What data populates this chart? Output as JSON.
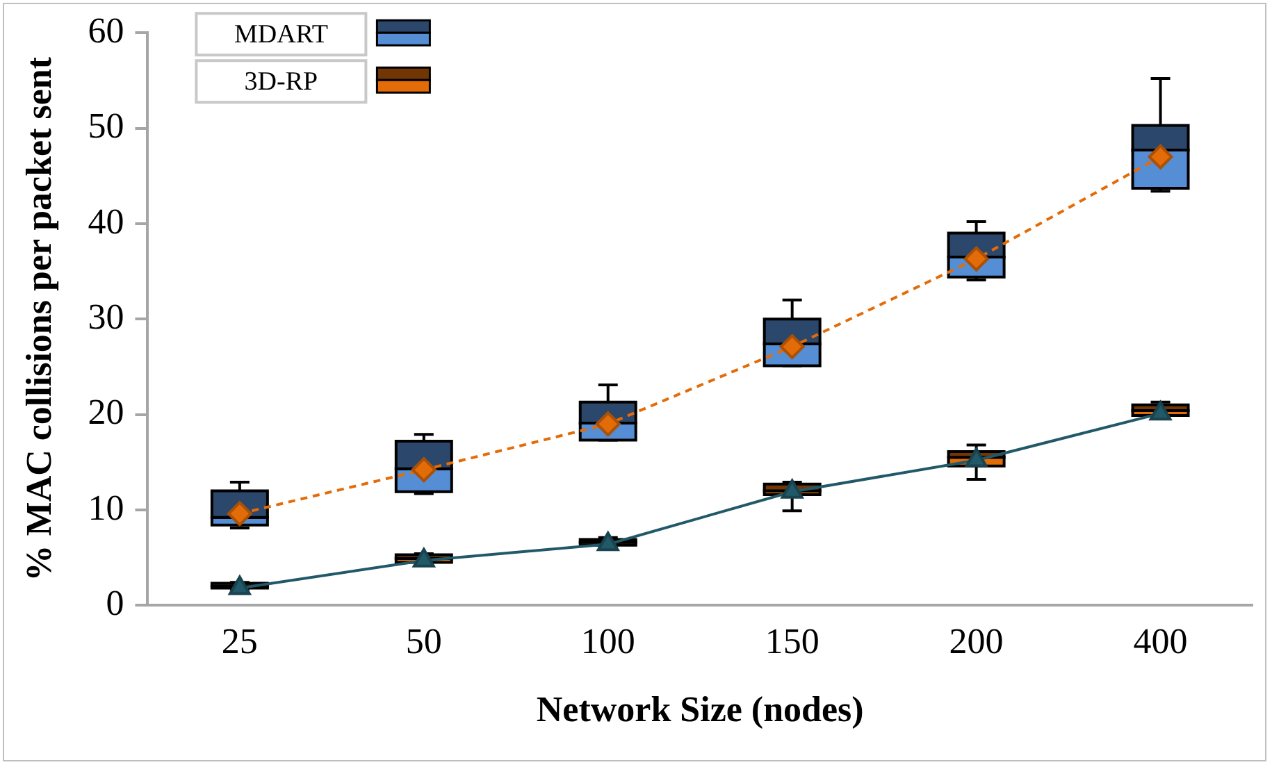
{
  "chart_data": {
    "type": "box",
    "xlabel": "Network Size (nodes)",
    "ylabel": "% MAC collisions per packet sent",
    "categories": [
      "25",
      "50",
      "100",
      "150",
      "200",
      "400"
    ],
    "ylim": [
      0,
      60
    ],
    "yticks": [
      0,
      10,
      20,
      30,
      40,
      50,
      60
    ],
    "grid": false,
    "legend": "top left",
    "series": [
      {
        "name": "MDART",
        "type": "box",
        "color": "#558ed5",
        "boxes": [
          {
            "low": 8.1,
            "q1": 8.4,
            "median": 9.2,
            "q3": 12.0,
            "high": 12.9
          },
          {
            "low": 11.7,
            "q1": 11.9,
            "median": 14.3,
            "q3": 17.2,
            "high": 17.9
          },
          {
            "low": 17.3,
            "q1": 17.3,
            "median": 19.1,
            "q3": 21.3,
            "high": 23.1
          },
          {
            "low": 25.1,
            "q1": 25.1,
            "median": 27.4,
            "q3": 30.0,
            "high": 32.0
          },
          {
            "low": 34.1,
            "q1": 34.4,
            "median": 36.5,
            "q3": 39.0,
            "high": 40.2
          },
          {
            "low": 43.4,
            "q1": 43.7,
            "median": 47.7,
            "q3": 50.3,
            "high": 55.2
          }
        ]
      },
      {
        "name": "3D-RP",
        "type": "box",
        "color": "#e36c09",
        "boxes": [
          {
            "low": 1.7,
            "q1": 1.8,
            "median": 2.0,
            "q3": 2.3,
            "high": 2.4
          },
          {
            "low": 4.4,
            "q1": 4.5,
            "median": 4.9,
            "q3": 5.3,
            "high": 5.4
          },
          {
            "low": 6.2,
            "q1": 6.3,
            "median": 6.6,
            "q3": 6.9,
            "high": 7.1
          },
          {
            "low": 9.9,
            "q1": 11.6,
            "median": 12.0,
            "q3": 12.7,
            "high": 12.9
          },
          {
            "low": 13.2,
            "q1": 14.6,
            "median": 15.5,
            "q3": 16.1,
            "high": 16.8
          },
          {
            "low": 19.8,
            "q1": 19.9,
            "median": 20.4,
            "q3": 21.0,
            "high": 21.3
          }
        ]
      },
      {
        "type": "line",
        "color": "#e36c09",
        "marker": "diamond",
        "line_style": "dashed",
        "values": [
          9.6,
          14.2,
          19.0,
          27.1,
          36.3,
          47.0
        ]
      },
      {
        "type": "line",
        "color": "#215968",
        "marker": "triangle",
        "line_style": "solid",
        "values": [
          1.8,
          4.7,
          6.4,
          11.9,
          15.2,
          20.1
        ]
      }
    ]
  }
}
